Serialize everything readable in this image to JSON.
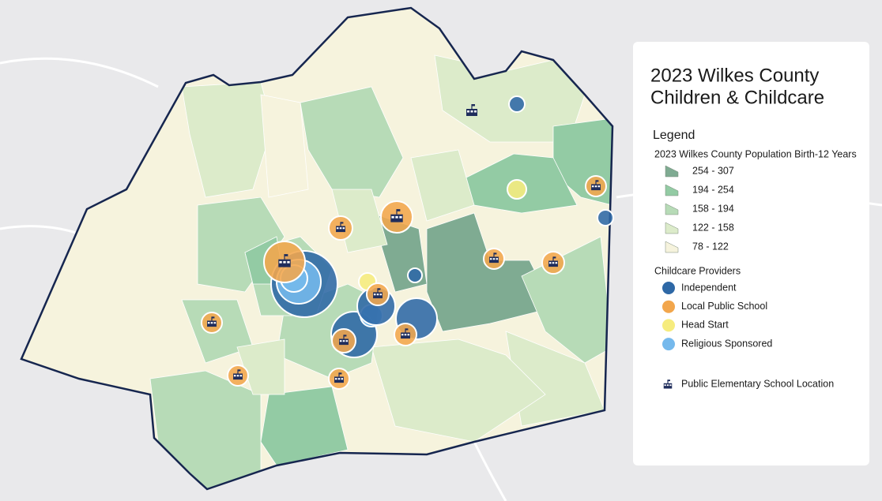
{
  "title": [
    "2023 Wilkes County",
    "Children & Childcare"
  ],
  "legend": {
    "heading": "Legend",
    "population": {
      "title": "2023 Wilkes County Population Birth-12 Years",
      "classes": [
        {
          "label": "254 - 307",
          "color": "#7fab92"
        },
        {
          "label": "194 - 254",
          "color": "#93cba4"
        },
        {
          "label": "158 - 194",
          "color": "#b7dbb7"
        },
        {
          "label": "122 - 158",
          "color": "#dcebca"
        },
        {
          "label": "78 - 122",
          "color": "#f6f3dd"
        }
      ]
    },
    "providers": {
      "title": "Childcare Providers",
      "items": [
        {
          "label": "Independent",
          "color": "#2e68a6"
        },
        {
          "label": "Local Public School",
          "color": "#f2a64c"
        },
        {
          "label": "Head Start",
          "color": "#f6ec7e"
        },
        {
          "label": "Religious Sponsored",
          "color": "#75b9ec"
        }
      ]
    },
    "school": {
      "label": "Public Elementary School Location"
    }
  }
}
